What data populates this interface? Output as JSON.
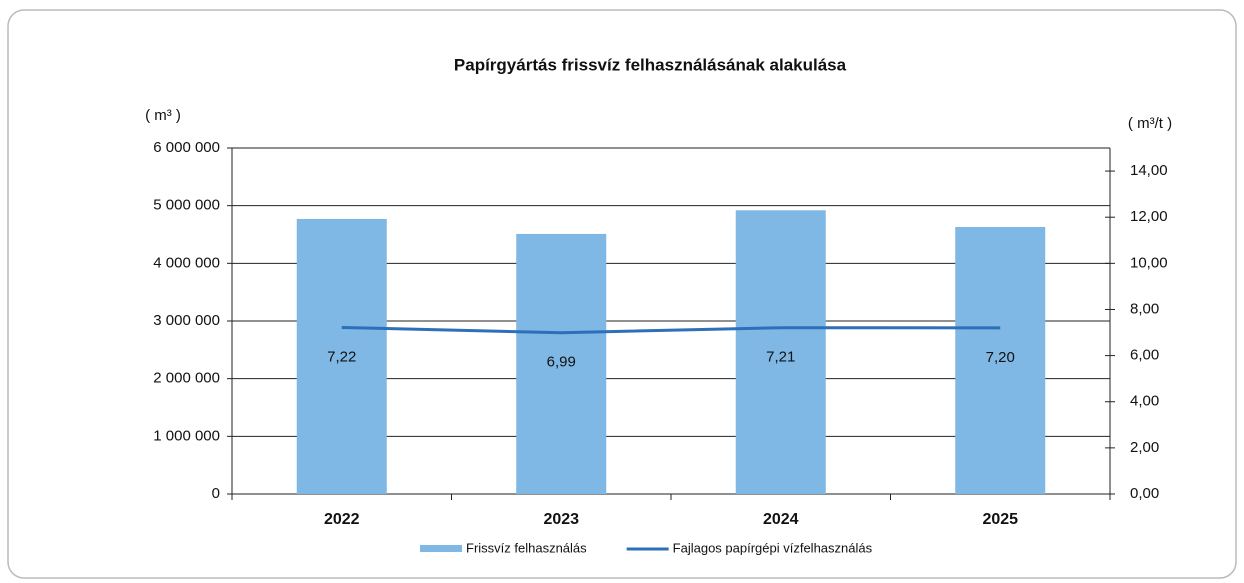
{
  "chart_data": {
    "type": "bar",
    "title": "Papírgyártás frissvíz felhasználásának alakulása",
    "y_label": "( m³ )",
    "y2_label": "( m³/t )",
    "categories": [
      "2022",
      "2023",
      "2024",
      "2025"
    ],
    "series": [
      {
        "name": "Frissvíz felhasználás",
        "type": "bar",
        "color": "#7fb8e4",
        "values": [
          4770000,
          4510000,
          4920000,
          4630000
        ]
      },
      {
        "name": "Fajlagos papírgépi vízfelhasználás",
        "type": "line",
        "axis": "y2",
        "color": "#2e6fba",
        "values": [
          7.22,
          6.99,
          7.21,
          7.2
        ],
        "value_labels": [
          "7,22",
          "6,99",
          "7,21",
          "7,20"
        ]
      }
    ],
    "ylim": [
      0,
      6000000
    ],
    "yticks": [
      0,
      {
        "value": 1000000,
        "label": "1 000 000"
      },
      {
        "value": 2000000,
        "label": "2 000 000"
      },
      {
        "value": 3000000,
        "label": "3 000 000"
      },
      {
        "value": 4000000,
        "label": "4 000 000"
      },
      {
        "value": 5000000,
        "label": "5 000 000"
      },
      {
        "value": 6000000,
        "label": "6 000 000"
      }
    ],
    "y2lim": [
      0,
      15
    ],
    "y2ticks": [
      {
        "value": 0,
        "label": "0,00"
      },
      {
        "value": 2,
        "label": "2,00"
      },
      {
        "value": 4,
        "label": "4,00"
      },
      {
        "value": 6,
        "label": "6,00"
      },
      {
        "value": 8,
        "label": "8,00"
      },
      {
        "value": 10,
        "label": "10,00"
      },
      {
        "value": 12,
        "label": "12,00"
      },
      {
        "value": 14,
        "label": "14,00"
      }
    ],
    "grid": true
  }
}
